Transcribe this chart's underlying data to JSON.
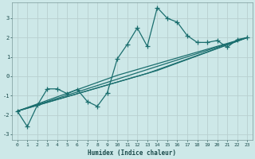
{
  "xlabel": "Humidex (Indice chaleur)",
  "xlim": [
    -0.5,
    23.5
  ],
  "ylim": [
    -3.3,
    3.8
  ],
  "yticks": [
    -3,
    -2,
    -1,
    0,
    1,
    2,
    3
  ],
  "xticks": [
    0,
    1,
    2,
    3,
    4,
    5,
    6,
    7,
    8,
    9,
    10,
    11,
    12,
    13,
    14,
    15,
    16,
    17,
    18,
    19,
    20,
    21,
    22,
    23
  ],
  "bg_color": "#cde8e8",
  "grid_color": "#b8d0d0",
  "line_color": "#1a6e6e",
  "main_series": [
    [
      0,
      -1.8
    ],
    [
      1,
      -2.6
    ],
    [
      2,
      -1.5
    ],
    [
      3,
      -0.65
    ],
    [
      4,
      -0.65
    ],
    [
      5,
      -0.9
    ],
    [
      6,
      -0.68
    ],
    [
      7,
      -1.3
    ],
    [
      8,
      -1.55
    ],
    [
      9,
      -0.85
    ],
    [
      10,
      0.9
    ],
    [
      11,
      1.65
    ],
    [
      12,
      2.5
    ],
    [
      13,
      1.55
    ],
    [
      14,
      3.55
    ],
    [
      15,
      3.0
    ],
    [
      16,
      2.8
    ],
    [
      17,
      2.1
    ],
    [
      18,
      1.75
    ],
    [
      19,
      1.75
    ],
    [
      20,
      1.85
    ],
    [
      21,
      1.5
    ],
    [
      22,
      1.9
    ],
    [
      23,
      2.0
    ]
  ],
  "trend_lines": [
    {
      "x": [
        0,
        23
      ],
      "y": [
        -1.8,
        2.0
      ]
    },
    {
      "x": [
        0,
        10,
        23
      ],
      "y": [
        -1.8,
        0.05,
        2.0
      ]
    },
    {
      "x": [
        0,
        13,
        23
      ],
      "y": [
        -1.8,
        0.15,
        2.0
      ]
    },
    {
      "x": [
        0,
        14,
        23
      ],
      "y": [
        -1.8,
        0.3,
        2.0
      ]
    }
  ]
}
